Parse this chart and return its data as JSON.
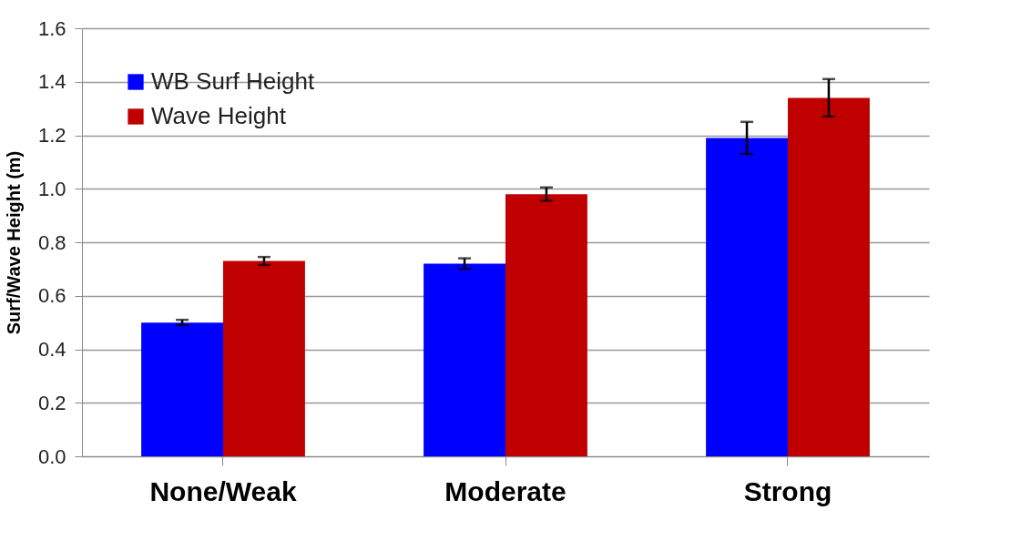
{
  "chart_data": {
    "type": "bar",
    "ylabel": "Surf/Wave Height (m)",
    "categories": [
      "None/Weak",
      "Moderate",
      "Strong"
    ],
    "series": [
      {
        "name": "WB Surf Height",
        "color": "#0000ff",
        "values": [
          0.5,
          0.72,
          1.19
        ],
        "errors": [
          0.01,
          0.02,
          0.06
        ]
      },
      {
        "name": "Wave Height",
        "color": "#c00000",
        "values": [
          0.73,
          0.98,
          1.34
        ],
        "errors": [
          0.015,
          0.025,
          0.07
        ]
      }
    ],
    "ylim": [
      0,
      1.6
    ],
    "yticks": [
      {
        "value": 0,
        "label": "0.0"
      },
      0.2,
      0.4,
      0.6,
      0.8,
      {
        "value": 1,
        "label": "1.0"
      },
      1.2,
      1.4,
      1.6
    ],
    "grid": "y",
    "legend": "top left"
  }
}
